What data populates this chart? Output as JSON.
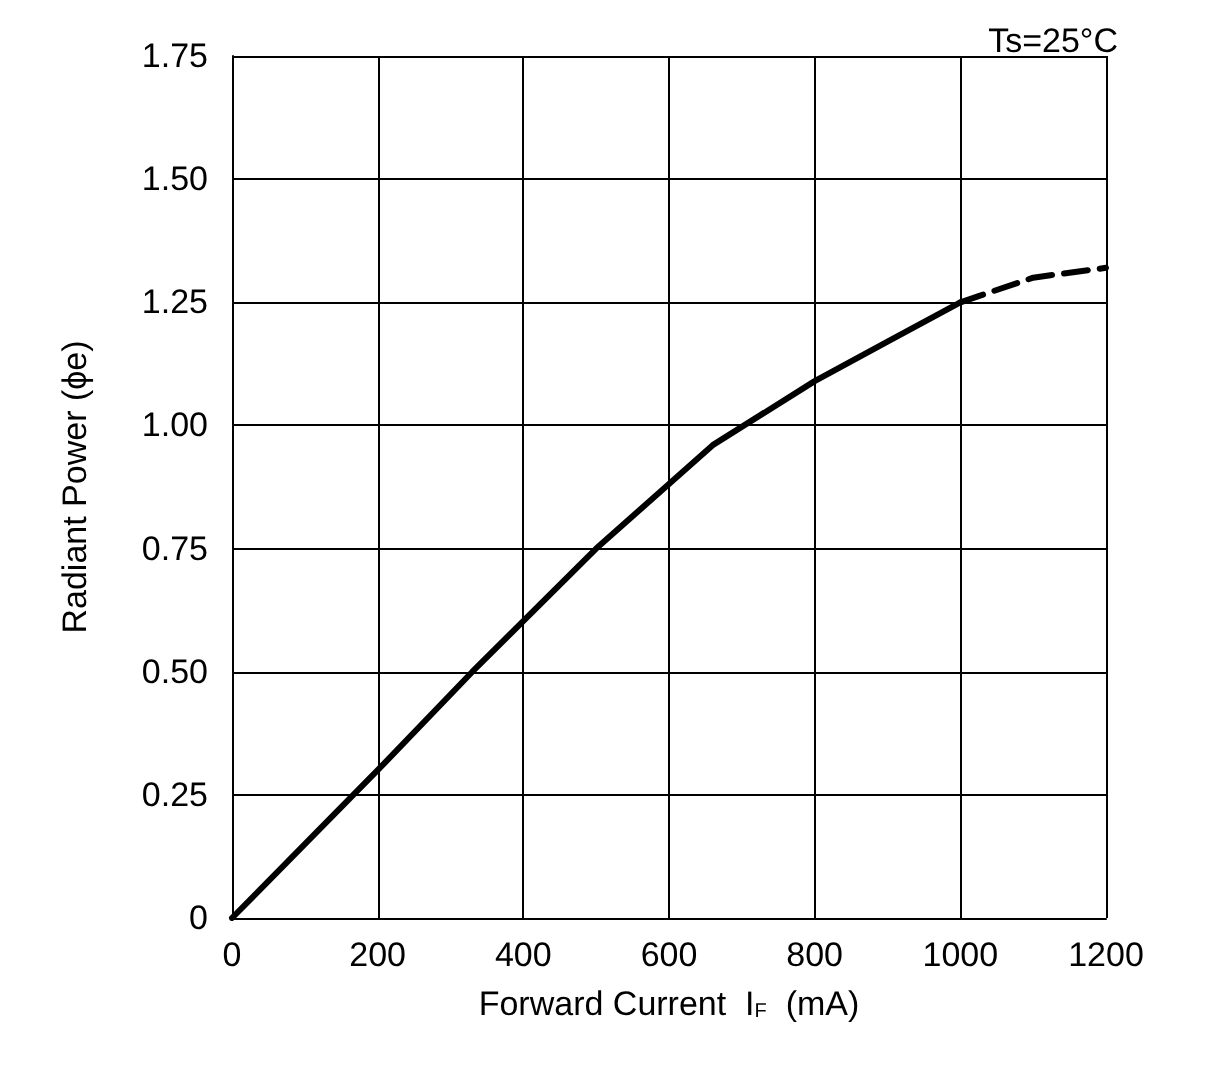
{
  "chart_data": {
    "type": "line",
    "xlabel": "Forward Current  I$_{F}$  (mA)",
    "ylabel": "Radiant Power (ϕe)",
    "annotations": [
      "Ts=25°C"
    ],
    "series": [
      {
        "color": "#000000",
        "line_style": "solid",
        "x": [
          0,
          100,
          200,
          330,
          500,
          660,
          800,
          900,
          1000
        ],
        "values": [
          0,
          0.15,
          0.3,
          0.5,
          0.75,
          0.96,
          1.09,
          1.17,
          1.25
        ]
      },
      {
        "color": "#000000",
        "line_style": "dashed",
        "x": [
          1000,
          1100,
          1200
        ],
        "values": [
          1.25,
          1.3,
          1.32
        ]
      }
    ],
    "xlim": [
      0,
      1200
    ],
    "xticks": [
      0,
      200,
      400,
      600,
      800,
      1000,
      1200
    ],
    "ylim": [
      0,
      1.75
    ],
    "yticks": [
      0,
      0.25,
      {
        "value": 0.5,
        "label": "0.50"
      },
      0.75,
      {
        "value": 1,
        "label": "1.00"
      },
      1.25,
      {
        "value": 1.5,
        "label": "1.50"
      },
      1.75
    ],
    "grid": true,
    "marker": "none"
  }
}
